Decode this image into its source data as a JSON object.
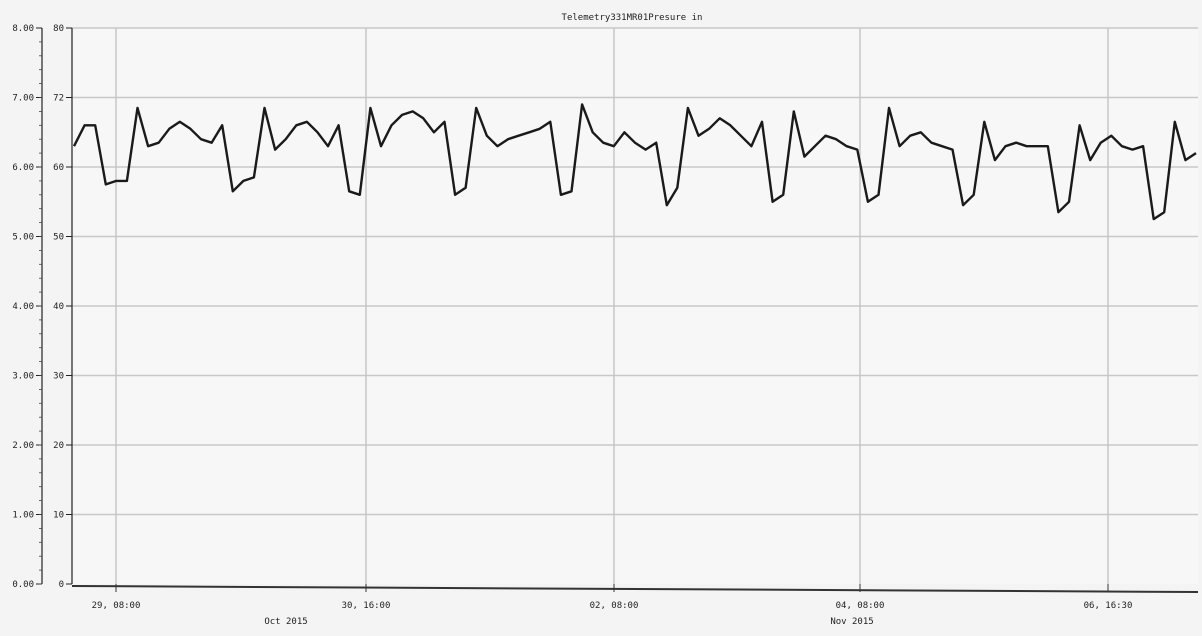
{
  "chart_data": {
    "type": "line",
    "title": "Telemetry331MR01Presure in",
    "left_axis_ticks": [
      "0.00",
      "1.00",
      "2.00",
      "3.00",
      "4.00",
      "5.00",
      "6.00",
      "7.00",
      "8.00"
    ],
    "right_axis_ticks": [
      "0",
      "10",
      "20",
      "30",
      "40",
      "50",
      "60",
      "72",
      "80"
    ],
    "ylim": [
      0,
      8
    ],
    "x_tick_labels": [
      "29, 08:00",
      "30, 16:00",
      "02, 08:00",
      "04, 08:00",
      "06, 16:30"
    ],
    "x_group_labels": [
      "Oct 2015",
      "Nov 2015"
    ],
    "grid": true,
    "series": [
      {
        "color": "#1a1a1a",
        "values": [
          6.3,
          6.6,
          6.6,
          5.75,
          5.8,
          5.8,
          6.85,
          6.3,
          6.35,
          6.55,
          6.65,
          6.55,
          6.4,
          6.35,
          6.6,
          5.65,
          5.8,
          5.85,
          6.85,
          6.25,
          6.4,
          6.6,
          6.65,
          6.5,
          6.3,
          6.6,
          5.65,
          5.6,
          6.85,
          6.3,
          6.6,
          6.75,
          6.8,
          6.7,
          6.5,
          6.65,
          5.6,
          5.7,
          6.85,
          6.45,
          6.3,
          6.4,
          6.45,
          6.5,
          6.55,
          6.65,
          5.6,
          5.65,
          6.9,
          6.5,
          6.35,
          6.3,
          6.5,
          6.35,
          6.25,
          6.35,
          5.45,
          5.7,
          6.85,
          6.45,
          6.55,
          6.7,
          6.6,
          6.45,
          6.3,
          6.65,
          5.5,
          5.6,
          6.8,
          6.15,
          6.3,
          6.45,
          6.4,
          6.3,
          6.25,
          5.5,
          5.6,
          6.85,
          6.3,
          6.45,
          6.5,
          6.35,
          6.3,
          6.25,
          5.45,
          5.6,
          6.65,
          6.1,
          6.3,
          6.35,
          6.3,
          6.3,
          6.3,
          5.35,
          5.5,
          6.6,
          6.1,
          6.35,
          6.45,
          6.3,
          6.25,
          6.3,
          5.25,
          5.35,
          6.65,
          6.1,
          6.2
        ]
      }
    ]
  }
}
